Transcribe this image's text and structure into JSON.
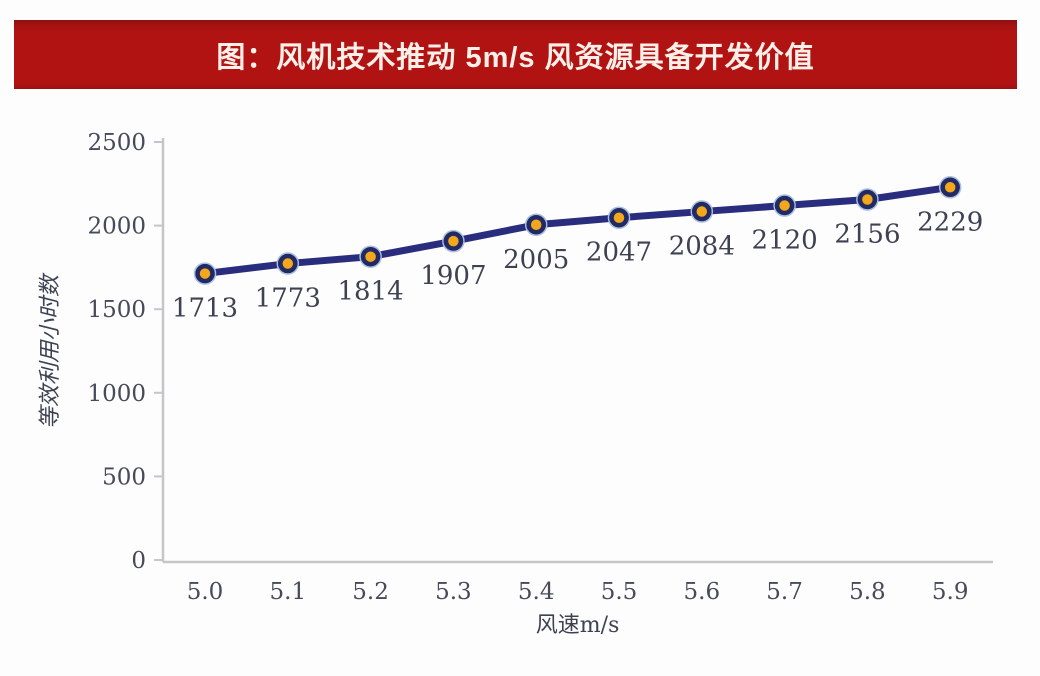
{
  "banner": {
    "title": "图：风机技术推动 5m/s 风资源具备开发价值",
    "bg_color": "#b11313",
    "text_color": "#ffefe9"
  },
  "chart_data": {
    "type": "line",
    "title": "图：风机技术推动 5m/s 风资源具备开发价值",
    "categories": [
      "5.0",
      "5.1",
      "5.2",
      "5.3",
      "5.4",
      "5.5",
      "5.6",
      "5.7",
      "5.8",
      "5.9"
    ],
    "series": [
      {
        "name": "等效利用小时数",
        "values": [
          1713,
          1773,
          1814,
          1907,
          2005,
          2047,
          2084,
          2120,
          2156,
          2229
        ]
      }
    ],
    "xlabel": "风速m/s",
    "ylabel": "等效利用小时数",
    "ylim": [
      0,
      2500
    ],
    "yticks": [
      0,
      500,
      1000,
      1500,
      2000,
      2500
    ],
    "grid": false,
    "legend": "none",
    "data_labels": true,
    "colors": {
      "line": "#2a2d7e",
      "marker_fill": "#f3a71d",
      "marker_stroke": "#212a63",
      "axis": "#c6c6ca",
      "tick_text": "#474a59",
      "label_text": "#3e4152"
    }
  }
}
